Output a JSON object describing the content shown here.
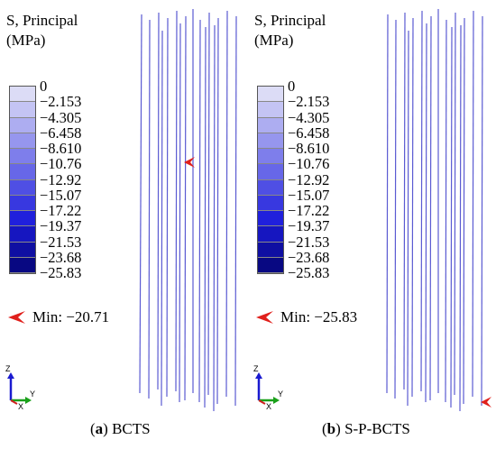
{
  "panels": [
    {
      "id": "a",
      "title_line1": "S, Principal",
      "title_line2": "(MPa)",
      "min_text": "Min: −20.71",
      "caption_label": "a",
      "caption_text": "BCTS"
    },
    {
      "id": "b",
      "title_line1": "S, Principal",
      "title_line2": "(MPa)",
      "min_text": "Min: −25.83",
      "caption_label": "b",
      "caption_text": "S-P-BCTS"
    }
  ],
  "legend": {
    "labels": [
      "0",
      "−2.153",
      "−4.305",
      "−6.458",
      "−8.610",
      "−10.76",
      "−12.92",
      "−15.07",
      "−17.22",
      "−19.37",
      "−21.53",
      "−23.68",
      "−25.83"
    ],
    "colors": [
      "#dcdcf6",
      "#c4c4f4",
      "#adadf1",
      "#9696ee",
      "#7e7eeb",
      "#6767e8",
      "#4f4fe4",
      "#3838e0",
      "#2020dc",
      "#1616c0",
      "#0f0fa2",
      "#080882"
    ]
  },
  "triad": {
    "z": "Z",
    "y": "Y",
    "x": "X"
  },
  "colors": {
    "rebar": "#5a5ad2",
    "marker": "#e0201c"
  }
}
